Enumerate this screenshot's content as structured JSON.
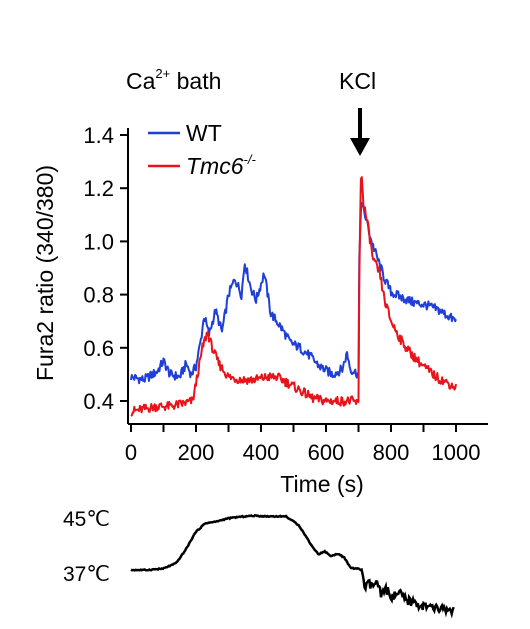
{
  "annotations": {
    "bath_label_main": "Ca",
    "bath_label_sup": "2+",
    "bath_label_rest": " bath",
    "kcl_label": "KCl"
  },
  "legend": {
    "placement": "top-left",
    "wt": "WT",
    "tmc6_main": "Tmc6",
    "tmc6_sup": "-/-"
  },
  "temperature_trace": {
    "high_label": "45℃",
    "low_label": "37℃",
    "color": "#000000",
    "points": [
      [
        0,
        37
      ],
      [
        50,
        37
      ],
      [
        100,
        37.2
      ],
      [
        140,
        38
      ],
      [
        170,
        40
      ],
      [
        200,
        42.5
      ],
      [
        230,
        43.8
      ],
      [
        260,
        44
      ],
      [
        300,
        44.5
      ],
      [
        330,
        44.7
      ],
      [
        380,
        44.9
      ],
      [
        420,
        44.8
      ],
      [
        480,
        44.8
      ],
      [
        520,
        43.5
      ],
      [
        560,
        40.5
      ],
      [
        580,
        39.3
      ],
      [
        600,
        39.7
      ],
      [
        620,
        39
      ],
      [
        640,
        39.4
      ],
      [
        660,
        38.8
      ],
      [
        680,
        37.3
      ],
      [
        700,
        37.2
      ],
      [
        715,
        37
      ],
      [
        725,
        34.2
      ],
      [
        735,
        35
      ],
      [
        745,
        34.6
      ],
      [
        760,
        35.2
      ],
      [
        775,
        33.2
      ],
      [
        790,
        34.2
      ],
      [
        810,
        33
      ],
      [
        830,
        33.6
      ],
      [
        850,
        32.6
      ],
      [
        880,
        32.2
      ],
      [
        910,
        31.6
      ],
      [
        940,
        31.4
      ],
      [
        970,
        31.3
      ],
      [
        1000,
        31.1
      ]
    ]
  },
  "chart_data": {
    "type": "line",
    "title": "",
    "xlabel": "Time (s)",
    "ylabel": "Fura2 ratio (340/380)",
    "xlim": [
      0,
      1000
    ],
    "ylim": [
      0.35,
      1.4
    ],
    "xticks": [
      "0",
      "200",
      "400",
      "600",
      "800",
      "1000"
    ],
    "yticks": [
      "0.4",
      "0.6",
      "0.8",
      "1.0",
      "1.2",
      "1.4"
    ],
    "grid": false,
    "series": [
      {
        "name": "WT",
        "color": "#1f3fd8",
        "points": [
          [
            0,
            0.49
          ],
          [
            40,
            0.48
          ],
          [
            80,
            0.51
          ],
          [
            100,
            0.55
          ],
          [
            120,
            0.5
          ],
          [
            150,
            0.49
          ],
          [
            170,
            0.54
          ],
          [
            185,
            0.5
          ],
          [
            200,
            0.53
          ],
          [
            215,
            0.63
          ],
          [
            225,
            0.72
          ],
          [
            240,
            0.65
          ],
          [
            260,
            0.74
          ],
          [
            280,
            0.66
          ],
          [
            300,
            0.8
          ],
          [
            320,
            0.86
          ],
          [
            340,
            0.8
          ],
          [
            350,
            0.92
          ],
          [
            370,
            0.82
          ],
          [
            385,
            0.78
          ],
          [
            410,
            0.88
          ],
          [
            430,
            0.73
          ],
          [
            460,
            0.68
          ],
          [
            490,
            0.62
          ],
          [
            520,
            0.6
          ],
          [
            550,
            0.57
          ],
          [
            580,
            0.53
          ],
          [
            620,
            0.5
          ],
          [
            650,
            0.52
          ],
          [
            665,
            0.58
          ],
          [
            675,
            0.52
          ],
          [
            700,
            0.5
          ],
          [
            702,
            0.9
          ],
          [
            708,
            1.15
          ],
          [
            720,
            1.1
          ],
          [
            740,
            1.0
          ],
          [
            760,
            0.93
          ],
          [
            780,
            0.86
          ],
          [
            800,
            0.81
          ],
          [
            830,
            0.79
          ],
          [
            870,
            0.77
          ],
          [
            910,
            0.76
          ],
          [
            950,
            0.74
          ],
          [
            1000,
            0.7
          ]
        ]
      },
      {
        "name": "Tmc6-/-",
        "color": "#e8141c",
        "points": [
          [
            0,
            0.36
          ],
          [
            40,
            0.37
          ],
          [
            80,
            0.38
          ],
          [
            120,
            0.38
          ],
          [
            160,
            0.39
          ],
          [
            190,
            0.4
          ],
          [
            205,
            0.5
          ],
          [
            220,
            0.6
          ],
          [
            235,
            0.66
          ],
          [
            250,
            0.6
          ],
          [
            270,
            0.54
          ],
          [
            300,
            0.49
          ],
          [
            340,
            0.48
          ],
          [
            380,
            0.48
          ],
          [
            420,
            0.49
          ],
          [
            450,
            0.49
          ],
          [
            480,
            0.47
          ],
          [
            520,
            0.44
          ],
          [
            560,
            0.41
          ],
          [
            600,
            0.4
          ],
          [
            640,
            0.4
          ],
          [
            680,
            0.4
          ],
          [
            700,
            0.39
          ],
          [
            703,
            0.95
          ],
          [
            708,
            1.27
          ],
          [
            715,
            1.15
          ],
          [
            730,
            1.05
          ],
          [
            745,
            0.93
          ],
          [
            765,
            0.88
          ],
          [
            780,
            0.78
          ],
          [
            800,
            0.7
          ],
          [
            830,
            0.63
          ],
          [
            860,
            0.58
          ],
          [
            900,
            0.53
          ],
          [
            940,
            0.49
          ],
          [
            970,
            0.47
          ],
          [
            1000,
            0.45
          ]
        ]
      }
    ]
  }
}
